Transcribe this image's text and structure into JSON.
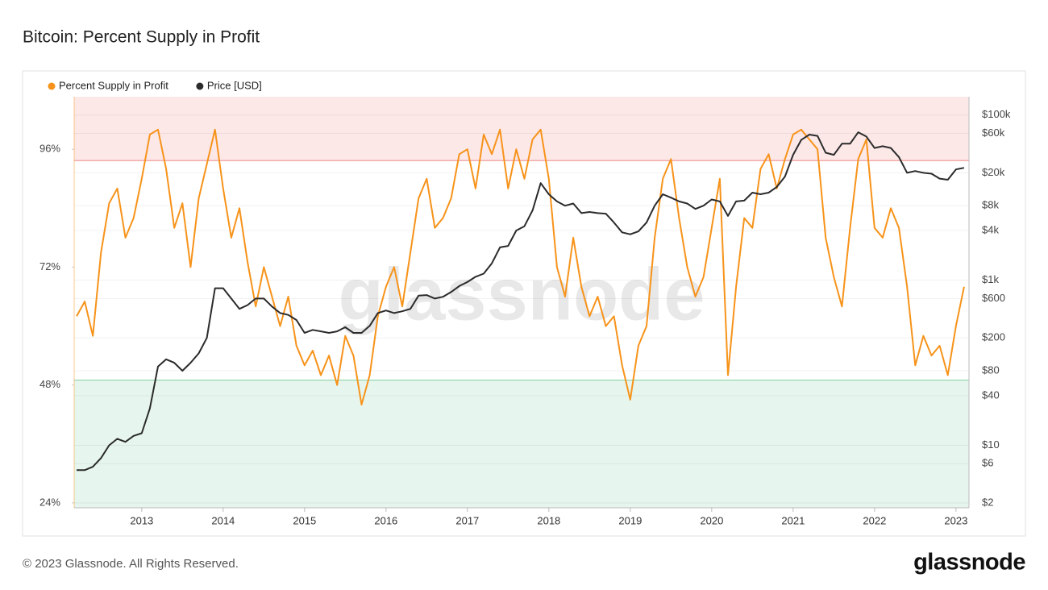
{
  "chart_data": {
    "type": "line",
    "title": "Bitcoin: Percent Supply in Profit",
    "x": [
      2012.2,
      2012.3,
      2012.4,
      2012.5,
      2012.6,
      2012.7,
      2012.8,
      2012.9,
      2013.0,
      2013.1,
      2013.2,
      2013.3,
      2013.4,
      2013.5,
      2013.6,
      2013.7,
      2013.8,
      2013.9,
      2014.0,
      2014.1,
      2014.2,
      2014.3,
      2014.4,
      2014.5,
      2014.6,
      2014.7,
      2014.8,
      2014.9,
      2015.0,
      2015.1,
      2015.2,
      2015.3,
      2015.4,
      2015.5,
      2015.6,
      2015.7,
      2015.8,
      2015.9,
      2016.0,
      2016.1,
      2016.2,
      2016.3,
      2016.4,
      2016.5,
      2016.6,
      2016.7,
      2016.8,
      2016.9,
      2017.0,
      2017.1,
      2017.2,
      2017.3,
      2017.4,
      2017.5,
      2017.6,
      2017.7,
      2017.8,
      2017.9,
      2018.0,
      2018.1,
      2018.2,
      2018.3,
      2018.4,
      2018.5,
      2018.6,
      2018.7,
      2018.8,
      2018.9,
      2019.0,
      2019.1,
      2019.2,
      2019.3,
      2019.4,
      2019.5,
      2019.6,
      2019.7,
      2019.8,
      2019.9,
      2020.0,
      2020.1,
      2020.2,
      2020.3,
      2020.4,
      2020.5,
      2020.6,
      2020.7,
      2020.8,
      2020.9,
      2021.0,
      2021.1,
      2021.2,
      2021.3,
      2021.4,
      2021.5,
      2021.6,
      2021.7,
      2021.8,
      2021.9,
      2022.0,
      2022.1,
      2022.2,
      2022.3,
      2022.4,
      2022.5,
      2022.6,
      2022.7,
      2022.8,
      2022.9,
      2023.0,
      2023.1
    ],
    "series": [
      {
        "name": "Percent Supply in Profit",
        "color": "#f7931a",
        "axis": "y",
        "values": [
          62,
          65,
          58,
          75,
          85,
          88,
          78,
          82,
          90,
          99,
          100,
          92,
          80,
          85,
          72,
          86,
          93,
          100,
          88,
          78,
          84,
          73,
          64,
          72,
          66,
          60,
          66,
          56,
          52,
          55,
          50,
          54,
          48,
          58,
          54,
          44,
          50,
          62,
          68,
          72,
          64,
          75,
          86,
          90,
          80,
          82,
          86,
          95,
          96,
          88,
          99,
          95,
          100,
          88,
          96,
          90,
          98,
          100,
          90,
          72,
          66,
          78,
          68,
          62,
          66,
          60,
          62,
          52,
          45,
          56,
          60,
          78,
          90,
          94,
          82,
          72,
          66,
          70,
          80,
          90,
          50,
          68,
          82,
          80,
          92,
          95,
          88,
          94,
          99,
          100,
          98,
          96,
          78,
          70,
          64,
          80,
          94,
          98,
          80,
          78,
          84,
          80,
          68,
          52,
          58,
          54,
          56,
          50,
          60,
          68
        ]
      },
      {
        "name": "Price [USD]",
        "color": "#2b2b2b",
        "axis": "y2",
        "values": [
          5,
          5,
          5.5,
          7,
          10,
          12,
          11,
          13,
          14,
          28,
          90,
          110,
          100,
          80,
          100,
          130,
          200,
          800,
          800,
          600,
          450,
          500,
          600,
          600,
          480,
          400,
          380,
          330,
          230,
          250,
          240,
          230,
          240,
          270,
          230,
          230,
          280,
          400,
          430,
          400,
          420,
          450,
          650,
          660,
          600,
          630,
          720,
          850,
          950,
          1100,
          1200,
          1600,
          2500,
          2600,
          4000,
          4500,
          7000,
          15000,
          11000,
          9000,
          8000,
          8500,
          6500,
          6700,
          6500,
          6400,
          5000,
          3800,
          3600,
          3900,
          5000,
          8000,
          11000,
          10000,
          9000,
          8500,
          7300,
          8000,
          9500,
          9000,
          6000,
          9000,
          9200,
          11500,
          11000,
          11500,
          13500,
          18000,
          33000,
          50000,
          58000,
          56000,
          35000,
          33000,
          45000,
          45000,
          62000,
          55000,
          40000,
          42000,
          40000,
          31000,
          20000,
          21000,
          20000,
          19500,
          17000,
          16500,
          22000,
          23000
        ]
      }
    ],
    "xlim": [
      2012.17,
      2023.16
    ],
    "xticks": [
      2013,
      2014,
      2015,
      2016,
      2017,
      2018,
      2019,
      2020,
      2021,
      2022,
      2023
    ],
    "ylim": [
      23,
      106.7
    ],
    "yticks": [
      {
        "value": 24,
        "label": "24%"
      },
      {
        "value": 48,
        "label": "48%"
      },
      {
        "value": 72,
        "label": "72%"
      },
      {
        "value": 96,
        "label": "96%"
      }
    ],
    "y2lim": [
      1.75,
      167000
    ],
    "y2scale": "log",
    "y2ticks": [
      {
        "value": 2,
        "label": "$2"
      },
      {
        "value": 6,
        "label": "$6"
      },
      {
        "value": 10,
        "label": "$10"
      },
      {
        "value": 40,
        "label": "$40"
      },
      {
        "value": 80,
        "label": "$80"
      },
      {
        "value": 200,
        "label": "$200"
      },
      {
        "value": 600,
        "label": "$600"
      },
      {
        "value": 1000,
        "label": "$1k"
      },
      {
        "value": 4000,
        "label": "$4k"
      },
      {
        "value": 8000,
        "label": "$8k"
      },
      {
        "value": 20000,
        "label": "$20k"
      },
      {
        "value": 60000,
        "label": "$60k"
      },
      {
        "value": 100000,
        "label": "$100k"
      }
    ],
    "grid": true,
    "bands": [
      {
        "from": 93.7,
        "to": 106.7,
        "color": "#fde8e8",
        "edge": 93.7,
        "edge_color": "#f09090"
      },
      {
        "from": 23,
        "to": 49,
        "color": "#e6f6ee",
        "edge": 49,
        "edge_color": "#8fd4a8"
      }
    ],
    "legend": "top-left"
  },
  "watermark": "glassnode",
  "footer": "© 2023 Glassnode. All Rights Reserved.",
  "logo": "glassnode"
}
